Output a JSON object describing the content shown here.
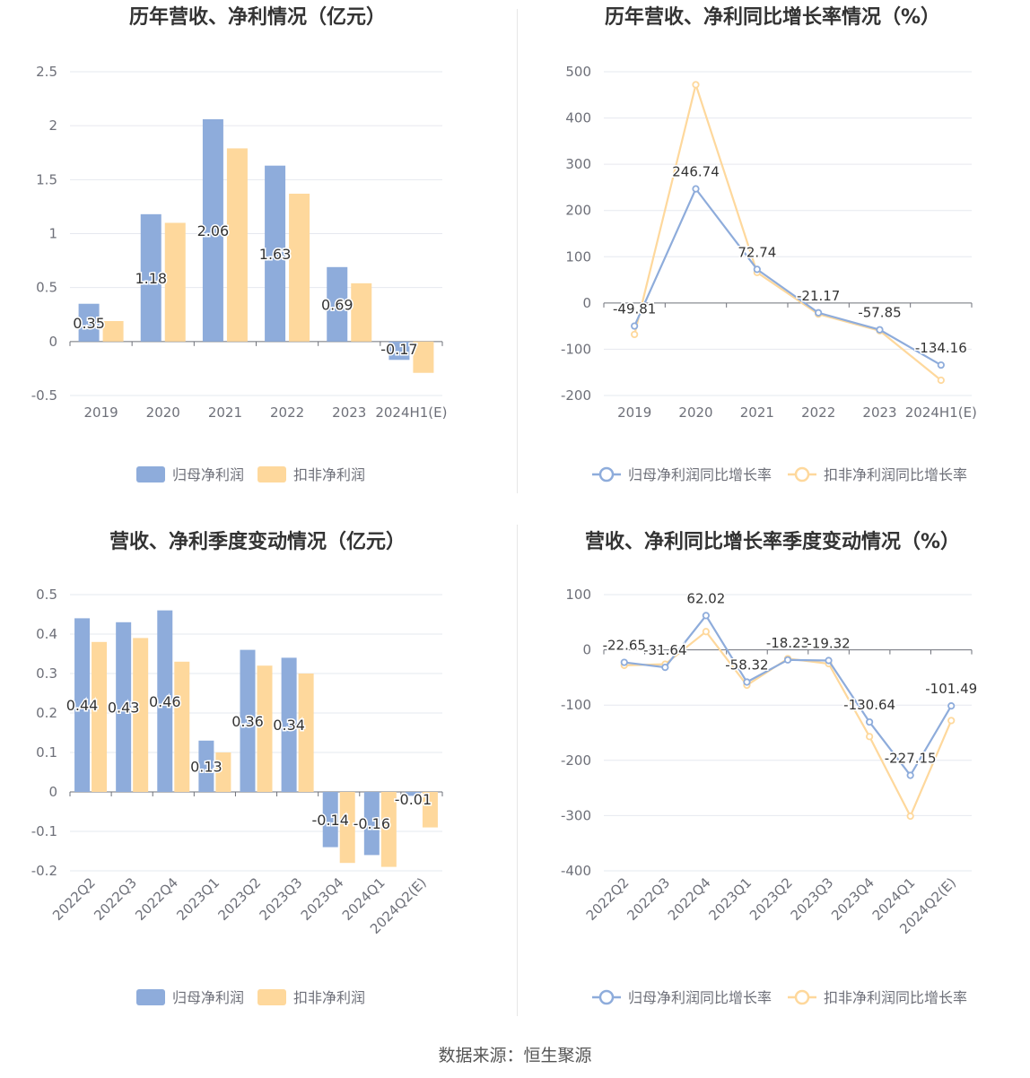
{
  "footer": {
    "source": "数据来源：恒生聚源"
  },
  "colors": {
    "series1": "#8eacdb",
    "series2": "#fed89c",
    "axis": "#6e7079",
    "grid": "#e6e8ef",
    "label": "#333333"
  },
  "chart_data": [
    {
      "type": "bar",
      "title": "历年营收、净利情况（亿元）",
      "categories": [
        "2019",
        "2020",
        "2021",
        "2022",
        "2023",
        "2024H1(E)"
      ],
      "ylim": [
        -0.5,
        2.5
      ],
      "yticks": [
        -0.5,
        0,
        0.5,
        1,
        1.5,
        2,
        2.5
      ],
      "yticklabels": [
        "-0.5",
        "0",
        "0.5",
        "1",
        "1.5",
        "2",
        "2.5"
      ],
      "series": [
        {
          "name": "归母净利润",
          "values": [
            0.35,
            1.18,
            2.06,
            1.63,
            0.69,
            -0.17
          ],
          "labels": [
            "0.35",
            "1.18",
            "2.06",
            "1.63",
            "0.69",
            "-0.17"
          ]
        },
        {
          "name": "扣非净利润",
          "values": [
            0.19,
            1.1,
            1.79,
            1.37,
            0.54,
            -0.29
          ]
        }
      ],
      "legend": "bottom",
      "grid": true
    },
    {
      "type": "line",
      "title": "历年营收、净利同比增长率情况（%）",
      "categories": [
        "2019",
        "2020",
        "2021",
        "2022",
        "2023",
        "2024H1(E)"
      ],
      "ylim": [
        -200,
        500
      ],
      "yticks": [
        -200,
        -100,
        0,
        100,
        200,
        300,
        400,
        500
      ],
      "yticklabels": [
        "-200",
        "-100",
        "0",
        "100",
        "200",
        "300",
        "400",
        "500"
      ],
      "series": [
        {
          "name": "归母净利润同比增长率",
          "values": [
            -49.81,
            246.74,
            72.74,
            -21.17,
            -57.85,
            -134.16
          ],
          "labels": [
            "-49.81",
            "246.74",
            "72.74",
            "-21.17",
            "-57.85",
            "-134.16"
          ]
        },
        {
          "name": "扣非净利润同比增长率",
          "values": [
            -68,
            472,
            66,
            -24,
            -60,
            -167
          ]
        }
      ],
      "legend": "bottom",
      "grid": true
    },
    {
      "type": "bar",
      "title": "营收、净利季度变动情况（亿元）",
      "categories": [
        "2022Q2",
        "2022Q3",
        "2022Q4",
        "2023Q1",
        "2023Q2",
        "2023Q3",
        "2023Q4",
        "2024Q1",
        "2024Q2(E)"
      ],
      "ylim": [
        -0.2,
        0.5
      ],
      "yticks": [
        -0.2,
        -0.1,
        0,
        0.1,
        0.2,
        0.3,
        0.4,
        0.5
      ],
      "yticklabels": [
        "-0.2",
        "-0.1",
        "0",
        "0.1",
        "0.2",
        "0.3",
        "0.4",
        "0.5"
      ],
      "series": [
        {
          "name": "归母净利润",
          "values": [
            0.44,
            0.43,
            0.46,
            0.13,
            0.36,
            0.34,
            -0.14,
            -0.16,
            -0.01
          ],
          "labels": [
            "0.44",
            "0.43",
            "0.46",
            "0.13",
            "0.36",
            "0.34",
            "-0.14",
            "-0.16",
            "-0.01"
          ]
        },
        {
          "name": "扣非净利润",
          "values": [
            0.38,
            0.39,
            0.33,
            0.1,
            0.32,
            0.3,
            -0.18,
            -0.19,
            -0.09
          ]
        }
      ],
      "legend": "bottom",
      "grid": true
    },
    {
      "type": "line",
      "title": "营收、净利同比增长率季度变动情况（%）",
      "categories": [
        "2022Q2",
        "2022Q3",
        "2022Q4",
        "2023Q1",
        "2023Q2",
        "2023Q3",
        "2023Q4",
        "2024Q1",
        "2024Q2(E)"
      ],
      "ylim": [
        -400,
        100
      ],
      "yticks": [
        -400,
        -300,
        -200,
        -100,
        0,
        100
      ],
      "yticklabels": [
        "-400",
        "-300",
        "-200",
        "-100",
        "0",
        "100"
      ],
      "series": [
        {
          "name": "归母净利润同比增长率",
          "values": [
            -22.65,
            -31.64,
            62.02,
            -58.32,
            -18.23,
            -19.32,
            -130.64,
            -227.15,
            -101.49
          ],
          "labels": [
            "-22.65",
            "-31.64",
            "62.02",
            "-58.32",
            "-18.23",
            "-19.32",
            "-130.64",
            "-227.15",
            "-101.49"
          ]
        },
        {
          "name": "扣非净利润同比增长率",
          "values": [
            -28,
            -26,
            33,
            -64,
            -16,
            -25,
            -157,
            -301,
            -128
          ]
        }
      ],
      "legend": "bottom",
      "grid": true
    }
  ]
}
